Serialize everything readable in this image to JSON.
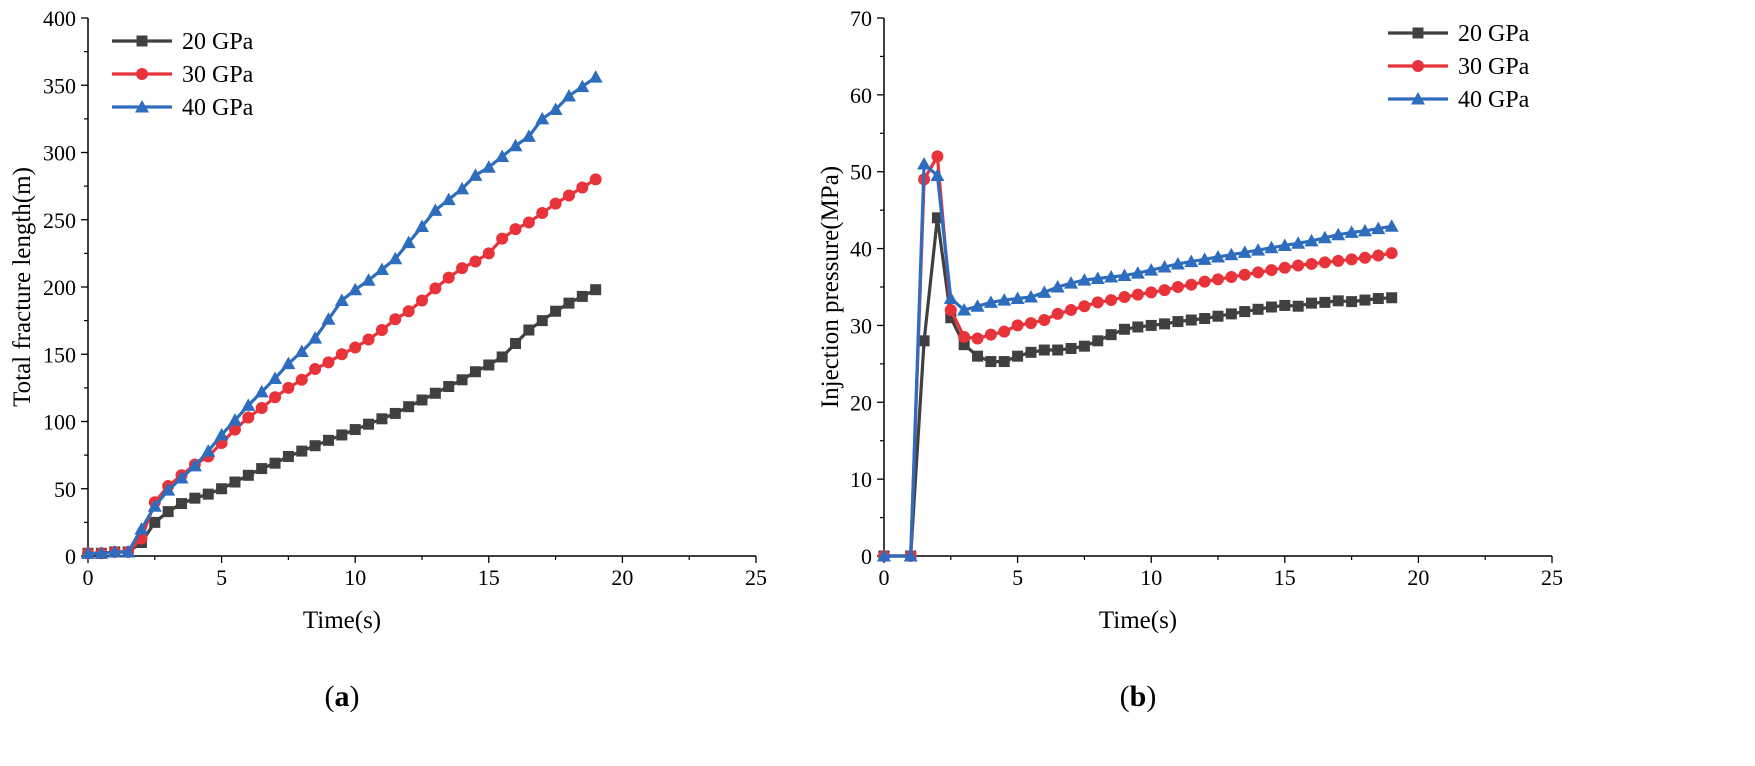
{
  "chart_data": [
    {
      "type": "line",
      "panel_label": "a",
      "title": "",
      "xlabel": "Time(s)",
      "ylabel": "Total fracture length(m)",
      "xlim": [
        0,
        25
      ],
      "ylim": [
        0,
        400
      ],
      "xticks": [
        0,
        5,
        10,
        15,
        20,
        25
      ],
      "yticks": [
        0,
        50,
        100,
        150,
        200,
        250,
        300,
        350,
        400
      ],
      "legend_position": "top-left",
      "grid": false,
      "series": [
        {
          "name": "20 GPa",
          "color": "#404040",
          "marker": "square",
          "x": [
            0,
            0.5,
            1,
            1.5,
            2,
            2.5,
            3,
            3.5,
            4,
            4.5,
            5,
            5.5,
            6,
            6.5,
            7,
            7.5,
            8,
            8.5,
            9,
            9.5,
            10,
            10.5,
            11,
            11.5,
            12,
            12.5,
            13,
            13.5,
            14,
            14.5,
            15,
            15.5,
            16,
            16.5,
            17,
            17.5,
            18,
            18.5,
            19
          ],
          "y": [
            2,
            2,
            3,
            3,
            10,
            25,
            33,
            39,
            43,
            46,
            50,
            55,
            60,
            65,
            69,
            74,
            78,
            82,
            86,
            90,
            94,
            98,
            102,
            106,
            111,
            116,
            121,
            126,
            131,
            137,
            142,
            148,
            158,
            168,
            175,
            182,
            188,
            193,
            198
          ]
        },
        {
          "name": "30 GPa",
          "color": "#e8333b",
          "marker": "circle",
          "x": [
            0,
            0.5,
            1,
            1.5,
            2,
            2.5,
            3,
            3.5,
            4,
            4.5,
            5,
            5.5,
            6,
            6.5,
            7,
            7.5,
            8,
            8.5,
            9,
            9.5,
            10,
            10.5,
            11,
            11.5,
            12,
            12.5,
            13,
            13.5,
            14,
            14.5,
            15,
            15.5,
            16,
            16.5,
            17,
            17.5,
            18,
            18.5,
            19
          ],
          "y": [
            2,
            2,
            3,
            3,
            13,
            40,
            52,
            60,
            68,
            74,
            84,
            94,
            103,
            110,
            118,
            125,
            131,
            139,
            144,
            150,
            155,
            161,
            168,
            176,
            182,
            190,
            199,
            207,
            214,
            219,
            225,
            236,
            243,
            248,
            255,
            262,
            268,
            274,
            280
          ]
        },
        {
          "name": "40 GPa",
          "color": "#2e6dbd",
          "marker": "triangle",
          "x": [
            0,
            0.5,
            1,
            1.5,
            2,
            2.5,
            3,
            3.5,
            4,
            4.5,
            5,
            5.5,
            6,
            6.5,
            7,
            7.5,
            8,
            8.5,
            9,
            9.5,
            10,
            10.5,
            11,
            11.5,
            12,
            12.5,
            13,
            13.5,
            14,
            14.5,
            15,
            15.5,
            16,
            16.5,
            17,
            17.5,
            18,
            18.5,
            19
          ],
          "y": [
            2,
            2,
            3,
            3,
            20,
            37,
            49,
            58,
            67,
            78,
            90,
            101,
            112,
            122,
            132,
            143,
            152,
            162,
            176,
            190,
            198,
            205,
            213,
            221,
            233,
            245,
            257,
            265,
            273,
            283,
            289,
            297,
            305,
            312,
            325,
            332,
            342,
            349,
            356
          ]
        }
      ]
    },
    {
      "type": "line",
      "panel_label": "b",
      "title": "",
      "xlabel": "Time(s)",
      "ylabel": "Injection pressure(MPa)",
      "xlim": [
        0,
        25
      ],
      "ylim": [
        0,
        70
      ],
      "xticks": [
        0,
        5,
        10,
        15,
        20,
        25
      ],
      "yticks": [
        0,
        10,
        20,
        30,
        40,
        50,
        60,
        70
      ],
      "legend_position": "top-right",
      "grid": false,
      "series": [
        {
          "name": "20 GPa",
          "color": "#404040",
          "marker": "square",
          "x": [
            0,
            1,
            1.5,
            2,
            2.5,
            3,
            3.5,
            4,
            4.5,
            5,
            5.5,
            6,
            6.5,
            7,
            7.5,
            8,
            8.5,
            9,
            9.5,
            10,
            10.5,
            11,
            11.5,
            12,
            12.5,
            13,
            13.5,
            14,
            14.5,
            15,
            15.5,
            16,
            16.5,
            17,
            17.5,
            18,
            18.5,
            19
          ],
          "y": [
            0,
            0,
            28,
            44,
            31,
            27.5,
            26,
            25.3,
            25.3,
            26,
            26.5,
            26.8,
            26.8,
            27,
            27.3,
            28,
            28.8,
            29.5,
            29.8,
            30,
            30.2,
            30.5,
            30.7,
            30.9,
            31.2,
            31.5,
            31.8,
            32.1,
            32.4,
            32.6,
            32.5,
            32.9,
            33,
            33.2,
            33.1,
            33.3,
            33.5,
            33.6
          ]
        },
        {
          "name": "30 GPa",
          "color": "#e8333b",
          "marker": "circle",
          "x": [
            0,
            1,
            1.5,
            2,
            2.5,
            3,
            3.5,
            4,
            4.5,
            5,
            5.5,
            6,
            6.5,
            7,
            7.5,
            8,
            8.5,
            9,
            9.5,
            10,
            10.5,
            11,
            11.5,
            12,
            12.5,
            13,
            13.5,
            14,
            14.5,
            15,
            15.5,
            16,
            16.5,
            17,
            17.5,
            18,
            18.5,
            19
          ],
          "y": [
            0,
            0,
            49,
            52,
            32,
            28.5,
            28.3,
            28.8,
            29.2,
            30,
            30.3,
            30.7,
            31.5,
            32,
            32.5,
            33,
            33.3,
            33.7,
            34,
            34.3,
            34.6,
            35,
            35.3,
            35.7,
            36,
            36.3,
            36.6,
            36.9,
            37.2,
            37.5,
            37.8,
            38,
            38.2,
            38.4,
            38.6,
            38.8,
            39.1,
            39.4
          ]
        },
        {
          "name": "40 GPa",
          "color": "#2e6dbd",
          "marker": "triangle",
          "x": [
            0,
            1,
            1.5,
            2,
            2.5,
            3,
            3.5,
            4,
            4.5,
            5,
            5.5,
            6,
            6.5,
            7,
            7.5,
            8,
            8.5,
            9,
            9.5,
            10,
            10.5,
            11,
            11.5,
            12,
            12.5,
            13,
            13.5,
            14,
            14.5,
            15,
            15.5,
            16,
            16.5,
            17,
            17.5,
            18,
            18.5,
            19
          ],
          "y": [
            0,
            0,
            51,
            49.5,
            33.5,
            32,
            32.5,
            33,
            33.3,
            33.5,
            33.7,
            34.3,
            35,
            35.5,
            35.9,
            36.1,
            36.3,
            36.5,
            36.8,
            37.2,
            37.6,
            38,
            38.3,
            38.6,
            38.9,
            39.2,
            39.5,
            39.8,
            40.1,
            40.4,
            40.7,
            41,
            41.4,
            41.8,
            42.1,
            42.3,
            42.6,
            42.9
          ]
        }
      ]
    }
  ]
}
